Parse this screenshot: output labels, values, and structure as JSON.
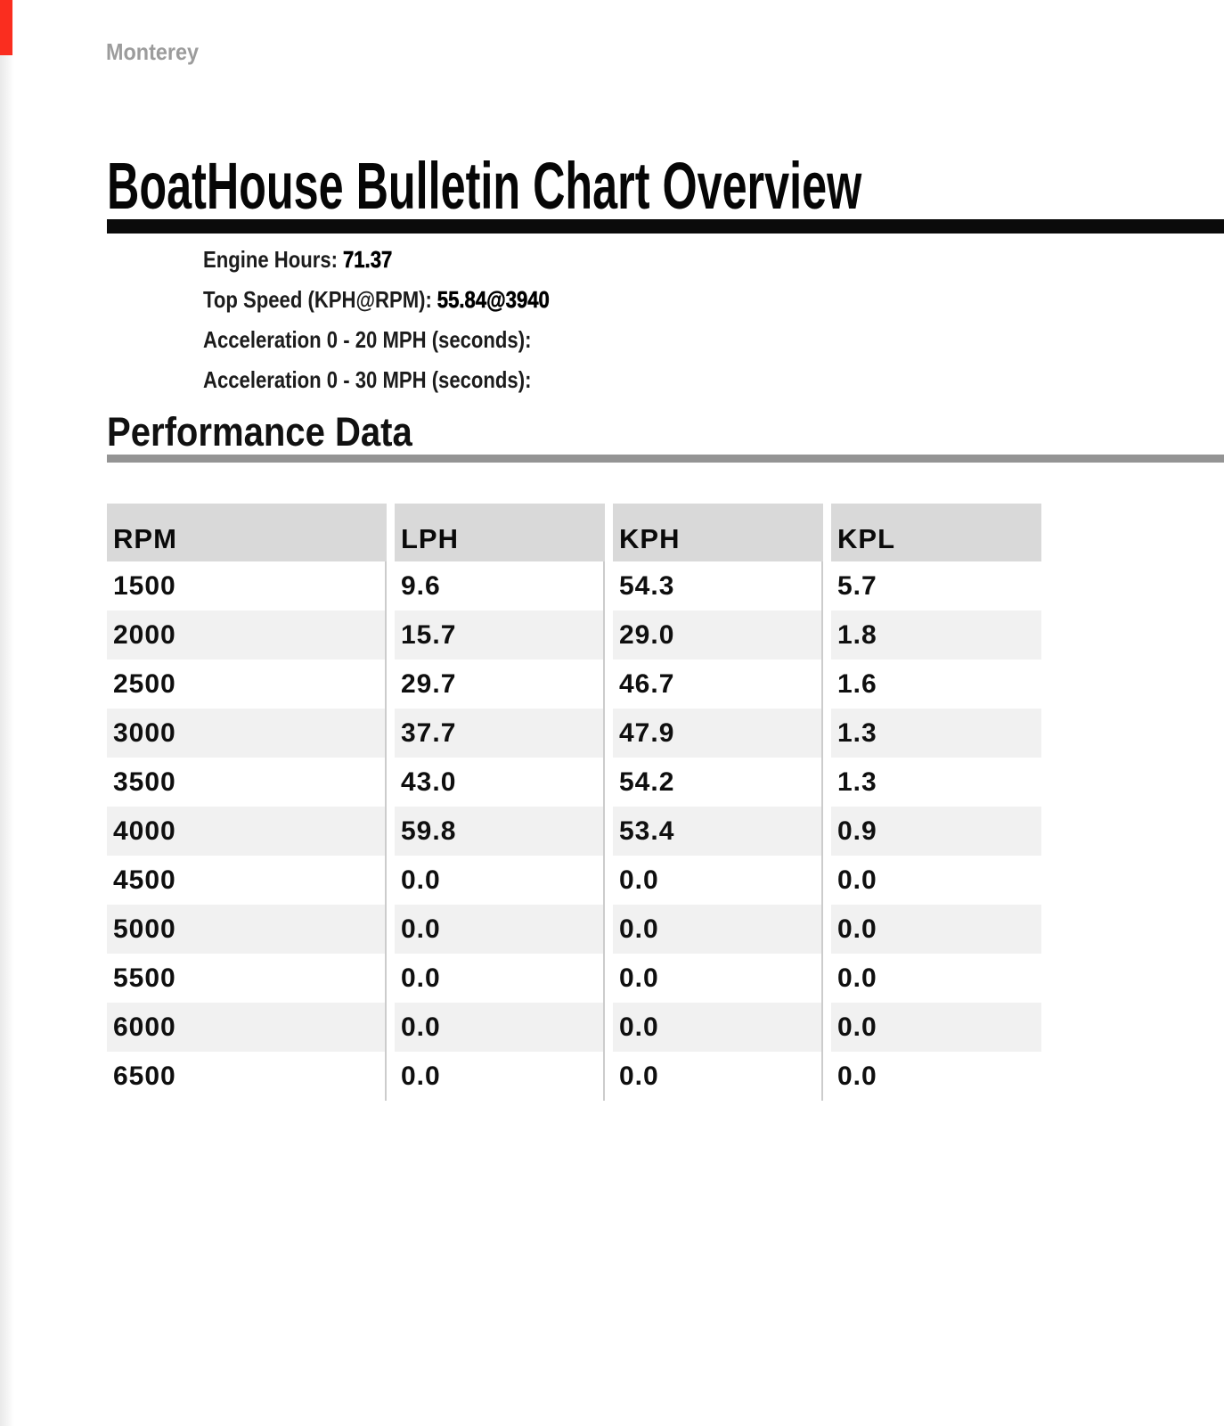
{
  "header": {
    "brand": "Monterey",
    "title": "BoatHouse Bulletin Chart Overview"
  },
  "summary": [
    {
      "label": "Engine Hours:",
      "value": "71.37"
    },
    {
      "label": "Top Speed (KPH@RPM):",
      "value": "55.84@3940"
    },
    {
      "label": "Acceleration 0 - 20 MPH (seconds):",
      "value": ""
    },
    {
      "label": "Acceleration 0 - 30 MPH (seconds):",
      "value": ""
    }
  ],
  "section": {
    "heading": "Performance Data"
  },
  "chart_data": {
    "type": "table",
    "title": "Performance Data",
    "columns": [
      "RPM",
      "LPH",
      "KPH",
      "KPL"
    ],
    "rows": [
      [
        "1500",
        "9.6",
        "54.3",
        "5.7"
      ],
      [
        "2000",
        "15.7",
        "29.0",
        "1.8"
      ],
      [
        "2500",
        "29.7",
        "46.7",
        "1.6"
      ],
      [
        "3000",
        "37.7",
        "47.9",
        "1.3"
      ],
      [
        "3500",
        "43.0",
        "54.2",
        "1.3"
      ],
      [
        "4000",
        "59.8",
        "53.4",
        "0.9"
      ],
      [
        "4500",
        "0.0",
        "0.0",
        "0.0"
      ],
      [
        "5000",
        "0.0",
        "0.0",
        "0.0"
      ],
      [
        "5500",
        "0.0",
        "0.0",
        "0.0"
      ],
      [
        "6000",
        "0.0",
        "0.0",
        "0.0"
      ],
      [
        "6500",
        "0.0",
        "0.0",
        "0.0"
      ]
    ]
  },
  "colors": {
    "corner_marker_red": "#fa2d1f",
    "table_header_bg": "#d9d9d9",
    "row_stripe_bg": "#f1f1f1",
    "title_rule_black": "#0b0b0b",
    "section_rule_gray": "#949494",
    "brand_gray": "#9c9c9c"
  }
}
